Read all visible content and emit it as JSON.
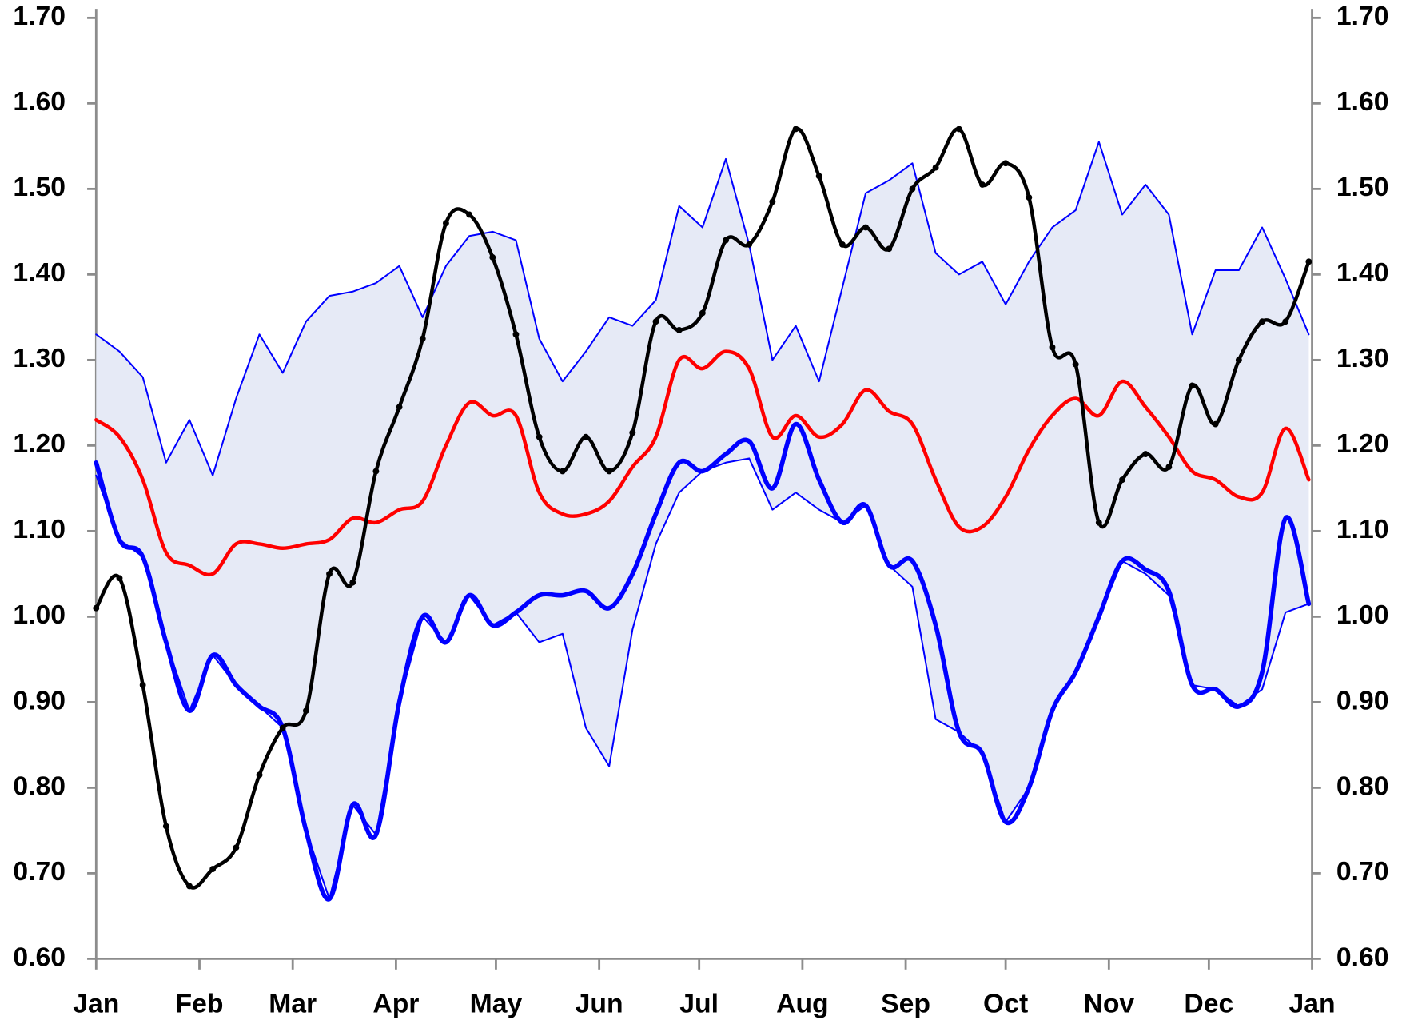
{
  "chart_data": {
    "type": "line",
    "x": [
      0,
      7,
      14,
      21,
      28,
      35,
      42,
      49,
      56,
      63,
      70,
      77,
      84,
      91,
      98,
      105,
      112,
      119,
      126,
      133,
      140,
      147,
      154,
      161,
      168,
      175,
      182,
      189,
      196,
      203,
      210,
      217,
      224,
      231,
      238,
      245,
      252,
      259,
      266,
      273,
      280,
      287,
      294,
      301,
      308,
      315,
      322,
      329,
      336,
      343,
      350,
      357,
      364
    ],
    "xlim": [
      0,
      365
    ],
    "xticks": [
      {
        "value": 0,
        "label": "Jan"
      },
      {
        "value": 31,
        "label": "Feb"
      },
      {
        "value": 59,
        "label": "Mar"
      },
      {
        "value": 90,
        "label": "Apr"
      },
      {
        "value": 120,
        "label": "May"
      },
      {
        "value": 151,
        "label": "Jun"
      },
      {
        "value": 181,
        "label": "Jul"
      },
      {
        "value": 212,
        "label": "Aug"
      },
      {
        "value": 243,
        "label": "Sep"
      },
      {
        "value": 273,
        "label": "Oct"
      },
      {
        "value": 304,
        "label": "Nov"
      },
      {
        "value": 334,
        "label": "Dec"
      },
      {
        "value": 365,
        "label": "Jan"
      }
    ],
    "ylim": [
      0.6,
      1.7
    ],
    "yticks": [
      {
        "value": 0.6,
        "label": "0.60"
      },
      {
        "value": 0.7,
        "label": "0.70"
      },
      {
        "value": 0.8,
        "label": "0.80"
      },
      {
        "value": 0.9,
        "label": "0.90"
      },
      {
        "value": 1.0,
        "label": "1.00"
      },
      {
        "value": 1.1,
        "label": "1.10"
      },
      {
        "value": 1.2,
        "label": "1.20"
      },
      {
        "value": 1.3,
        "label": "1.30"
      },
      {
        "value": 1.4,
        "label": "1.40"
      },
      {
        "value": 1.5,
        "label": "1.50"
      },
      {
        "value": 1.6,
        "label": "1.60"
      },
      {
        "value": 1.7,
        "label": "1.70"
      }
    ],
    "y2lim": [
      0.6,
      1.7
    ],
    "y2ticks": [
      {
        "value": 0.6,
        "label": "0.60"
      },
      {
        "value": 0.7,
        "label": "0.70"
      },
      {
        "value": 0.8,
        "label": "0.80"
      },
      {
        "value": 0.9,
        "label": "0.90"
      },
      {
        "value": 1.0,
        "label": "1.00"
      },
      {
        "value": 1.1,
        "label": "1.10"
      },
      {
        "value": 1.2,
        "label": "1.20"
      },
      {
        "value": 1.3,
        "label": "1.30"
      },
      {
        "value": 1.4,
        "label": "1.40"
      },
      {
        "value": 1.5,
        "label": "1.50"
      },
      {
        "value": 1.6,
        "label": "1.60"
      },
      {
        "value": 1.7,
        "label": "1.70"
      }
    ],
    "grid": false,
    "band_color": "#e6eaf6",
    "series": [
      {
        "color": "#0000ff",
        "smooth": false,
        "values": [
          1.33,
          1.31,
          1.28,
          1.18,
          1.23,
          1.165,
          1.255,
          1.33,
          1.285,
          1.345,
          1.375,
          1.38,
          1.39,
          1.41,
          1.35,
          1.41,
          1.445,
          1.45,
          1.44,
          1.325,
          1.275,
          1.31,
          1.35,
          1.34,
          1.37,
          1.48,
          1.455,
          1.535,
          1.435,
          1.3,
          1.34,
          1.275,
          1.385,
          1.495,
          1.51,
          1.53,
          1.425,
          1.4,
          1.415,
          1.365,
          1.415,
          1.455,
          1.475,
          1.555,
          1.47,
          1.505,
          1.47,
          1.33,
          1.405,
          1.405,
          1.455,
          1.395,
          1.33
        ]
      },
      {
        "color": "#0000ff",
        "smooth": false,
        "values": [
          1.165,
          1.09,
          1.07,
          0.97,
          0.89,
          0.955,
          0.92,
          0.895,
          0.87,
          0.75,
          0.67,
          0.78,
          0.745,
          0.9,
          1.0,
          0.97,
          1.025,
          0.99,
          1.005,
          0.97,
          0.98,
          0.87,
          0.825,
          0.985,
          1.085,
          1.145,
          1.17,
          1.18,
          1.185,
          1.125,
          1.145,
          1.125,
          1.11,
          1.13,
          1.06,
          1.035,
          0.88,
          0.865,
          0.84,
          0.76,
          0.8,
          0.89,
          0.935,
          1.0,
          1.065,
          1.05,
          1.025,
          0.92,
          0.915,
          0.895,
          0.915,
          1.005,
          1.015
        ]
      },
      {
        "color": "#ff0000",
        "smooth": true,
        "values": [
          1.23,
          1.21,
          1.16,
          1.075,
          1.06,
          1.05,
          1.085,
          1.085,
          1.08,
          1.085,
          1.09,
          1.115,
          1.11,
          1.125,
          1.135,
          1.2,
          1.25,
          1.235,
          1.235,
          1.145,
          1.12,
          1.12,
          1.135,
          1.175,
          1.21,
          1.3,
          1.29,
          1.31,
          1.29,
          1.21,
          1.235,
          1.21,
          1.225,
          1.265,
          1.24,
          1.225,
          1.16,
          1.105,
          1.105,
          1.14,
          1.195,
          1.235,
          1.255,
          1.235,
          1.275,
          1.245,
          1.21,
          1.17,
          1.16,
          1.14,
          1.145,
          1.22,
          1.16
        ]
      },
      {
        "color": "#0000ff",
        "smooth": true,
        "values": [
          1.18,
          1.09,
          1.07,
          0.97,
          0.89,
          0.955,
          0.92,
          0.895,
          0.87,
          0.75,
          0.67,
          0.78,
          0.745,
          0.9,
          1.0,
          0.97,
          1.025,
          0.99,
          1.005,
          1.025,
          1.025,
          1.03,
          1.01,
          1.05,
          1.12,
          1.18,
          1.17,
          1.19,
          1.205,
          1.15,
          1.225,
          1.16,
          1.11,
          1.13,
          1.06,
          1.065,
          0.99,
          0.865,
          0.84,
          0.76,
          0.8,
          0.89,
          0.935,
          1.0,
          1.065,
          1.055,
          1.03,
          0.92,
          0.915,
          0.895,
          0.935,
          1.115,
          1.015
        ]
      },
      {
        "color": "#000000",
        "smooth": true,
        "markers": true,
        "values": [
          1.01,
          1.045,
          0.92,
          0.755,
          0.685,
          0.705,
          0.73,
          0.815,
          0.87,
          0.89,
          1.05,
          1.04,
          1.17,
          1.245,
          1.325,
          1.46,
          1.47,
          1.42,
          1.33,
          1.21,
          1.17,
          1.21,
          1.17,
          1.215,
          1.345,
          1.335,
          1.355,
          1.44,
          1.435,
          1.485,
          1.57,
          1.515,
          1.435,
          1.455,
          1.43,
          1.5,
          1.525,
          1.57,
          1.505,
          1.53,
          1.49,
          1.315,
          1.295,
          1.11,
          1.16,
          1.19,
          1.175,
          1.27,
          1.225,
          1.3,
          1.345,
          1.345,
          1.415
        ]
      }
    ]
  }
}
